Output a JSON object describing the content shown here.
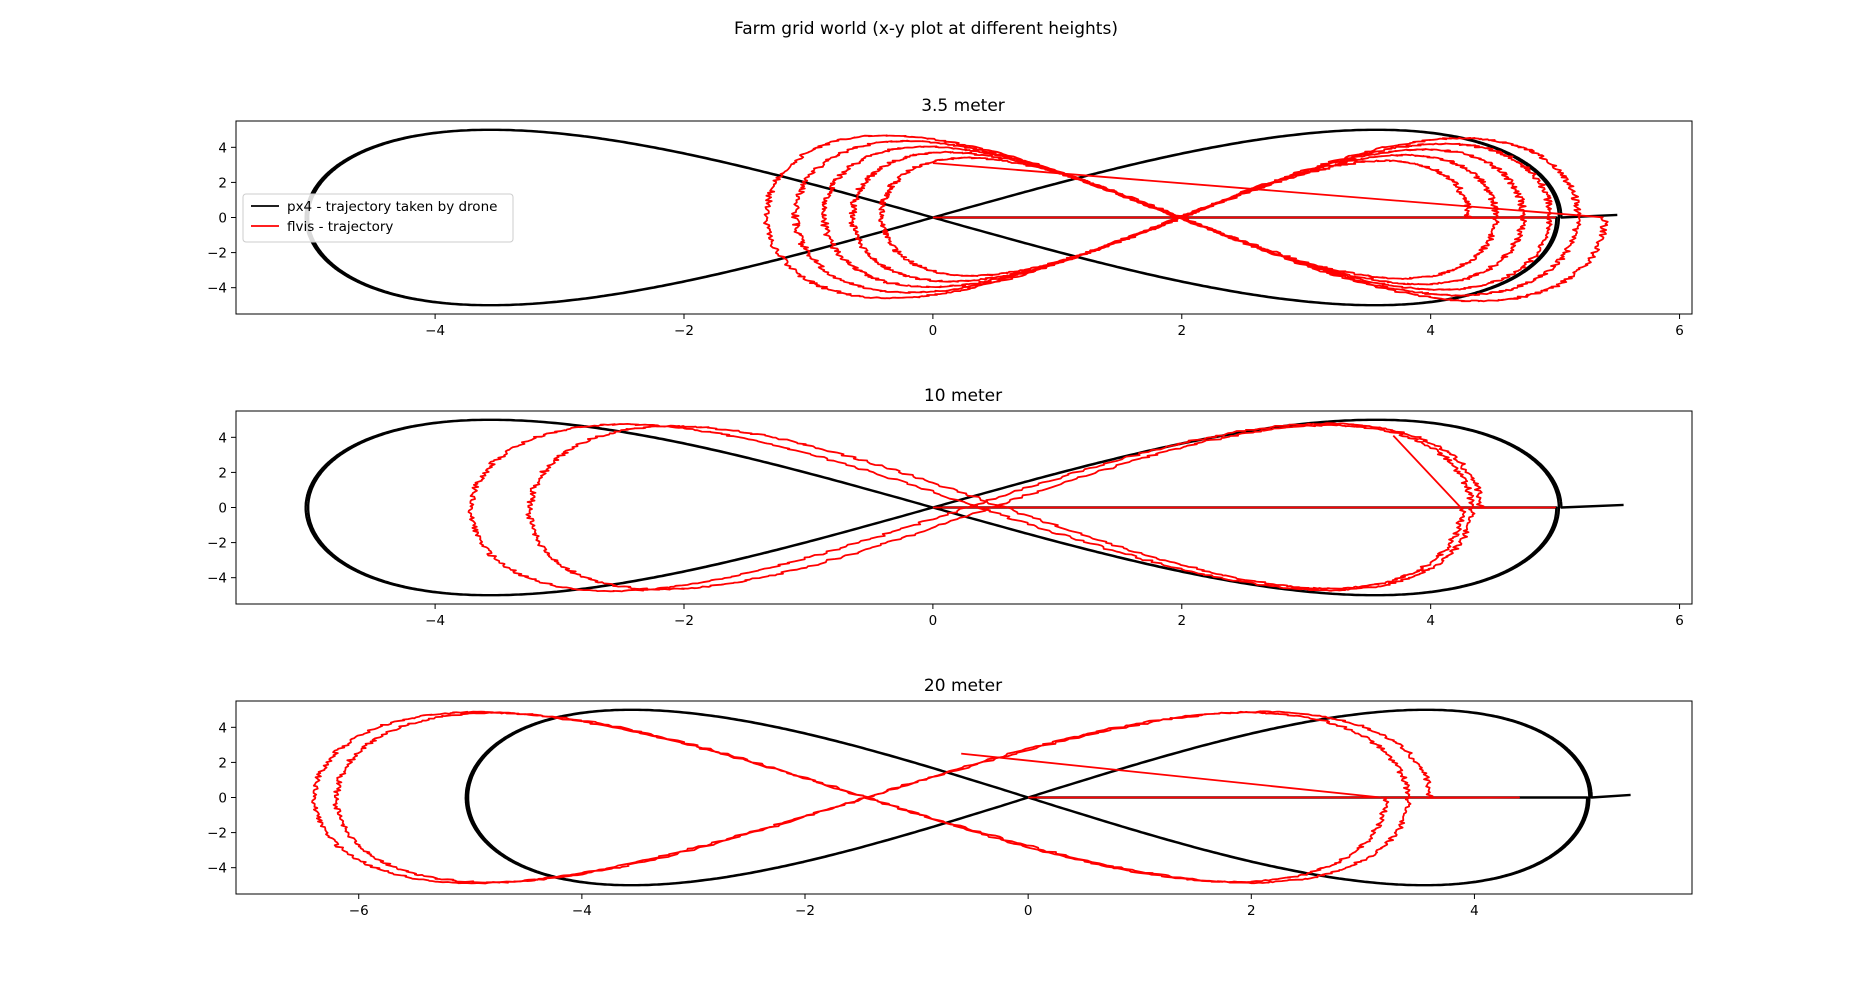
{
  "figure": {
    "suptitle": "Farm grid world (x-y plot at different heights)"
  },
  "legend": {
    "entries": [
      {
        "label": "px4 - trajectory taken by drone",
        "color": "#000000"
      },
      {
        "label": "flvis - trajectory",
        "color": "#ff0000"
      }
    ]
  },
  "colors": {
    "px4": "#000000",
    "flvis": "#ff0000"
  },
  "chart_data": [
    {
      "type": "line",
      "title": "3.5 meter",
      "xlabel": "",
      "ylabel": "",
      "xlim": [
        -5.6,
        6.1
      ],
      "ylim": [
        -5.5,
        5.5
      ],
      "xticks": [
        -4,
        -2,
        0,
        2,
        4,
        6
      ],
      "yticks": [
        -4,
        -2,
        0,
        2,
        4
      ],
      "grid": false,
      "legend_position": "center-left",
      "series": [
        {
          "name": "px4 - trajectory taken by drone",
          "color": "#000000",
          "kind": "lemniscate",
          "center_x": 0,
          "half_width": 5.05,
          "peak_y": 5.0,
          "loops": 2,
          "tail_to": 5.5
        },
        {
          "name": "flvis - trajectory",
          "color": "#ff0000",
          "kind": "drifting-lemniscate",
          "start_x": 5.0,
          "center_x_start": 4.05,
          "center_x_end": 4.65,
          "left_from": -0.3,
          "left_to": -1.45,
          "right_from": 4.3,
          "right_to": 5.4,
          "amplitude_from": 3.2,
          "amplitude_to": 4.8,
          "loops": 5,
          "end_x": 0.0,
          "end_y": 3.1
        }
      ]
    },
    {
      "type": "line",
      "title": "10 meter",
      "xlabel": "",
      "ylabel": "",
      "xlim": [
        -5.6,
        6.1
      ],
      "ylim": [
        -5.5,
        5.5
      ],
      "xticks": [
        -4,
        -2,
        0,
        2,
        4,
        6
      ],
      "yticks": [
        -4,
        -2,
        0,
        2,
        4
      ],
      "grid": false,
      "series": [
        {
          "name": "px4 - trajectory taken by drone",
          "color": "#000000",
          "kind": "lemniscate",
          "center_x": 0,
          "half_width": 5.05,
          "peak_y": 5.0,
          "loops": 2,
          "tail_to": 5.55
        },
        {
          "name": "flvis - trajectory",
          "color": "#ff0000",
          "kind": "drifting-lemniscate",
          "start_x": 5.0,
          "center_x_start": 0.1,
          "center_x_end": 0.15,
          "left_from": -3.95,
          "left_to": -3.0,
          "right_from": 4.4,
          "right_to": 4.25,
          "amplitude_from": 4.8,
          "amplitude_to": 4.6,
          "loops": 2,
          "end_x": 3.7,
          "end_y": 4.1
        }
      ]
    },
    {
      "type": "line",
      "title": "20 meter",
      "xlabel": "",
      "ylabel": "",
      "xlim": [
        -7.1,
        5.95
      ],
      "ylim": [
        -5.5,
        5.5
      ],
      "xticks": [
        -6,
        -4,
        -2,
        0,
        2,
        4
      ],
      "yticks": [
        -4,
        -2,
        0,
        2,
        4
      ],
      "grid": false,
      "series": [
        {
          "name": "px4 - trajectory taken by drone",
          "color": "#000000",
          "kind": "lemniscate",
          "center_x": 0,
          "half_width": 5.05,
          "peak_y": 5.0,
          "loops": 2,
          "tail_to": 5.4
        },
        {
          "name": "flvis - trajectory",
          "color": "#ff0000",
          "kind": "drifting-lemniscate",
          "start_x": 4.4,
          "center_x_start": -1.55,
          "center_x_end": -1.6,
          "left_from": -6.5,
          "left_to": -6.1,
          "right_from": 3.6,
          "right_to": 3.2,
          "amplitude_from": 4.9,
          "amplitude_to": 4.8,
          "loops": 2,
          "end_x": -0.6,
          "end_y": 2.5
        }
      ]
    }
  ]
}
